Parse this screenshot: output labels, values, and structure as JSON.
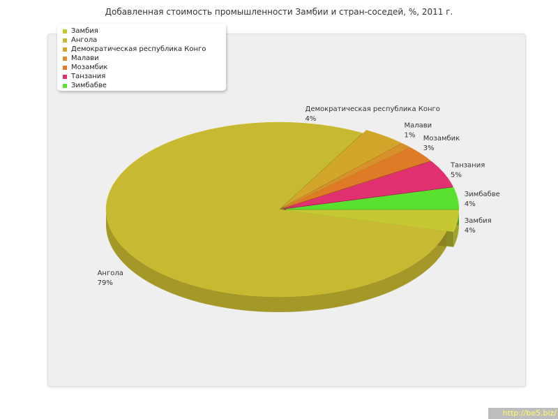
{
  "chart_data": {
    "type": "pie",
    "title": "Добавленная стоимость промышленности Замбии и стран-соседей, %, 2011 г.",
    "slices": [
      {
        "name": "Замбия",
        "value": 4,
        "value_label": "4%",
        "color": "#c5c833"
      },
      {
        "name": "Ангола",
        "value": 79,
        "value_label": "79%",
        "color": "#c8b932"
      },
      {
        "name": "Демократическая республика Конго",
        "value": 4,
        "value_label": "4%",
        "color": "#d2a62a"
      },
      {
        "name": "Малави",
        "value": 1,
        "value_label": "1%",
        "color": "#d7902a"
      },
      {
        "name": "Мозамбик",
        "value": 3,
        "value_label": "3%",
        "color": "#df7a26"
      },
      {
        "name": "Танзания",
        "value": 5,
        "value_label": "5%",
        "color": "#e0306f"
      },
      {
        "name": "Зимбабве",
        "value": 4,
        "value_label": "4%",
        "color": "#5ae02e"
      }
    ],
    "legend_position": "top-left",
    "style": "3d-exploded"
  },
  "watermark": "http://be5.biz/"
}
